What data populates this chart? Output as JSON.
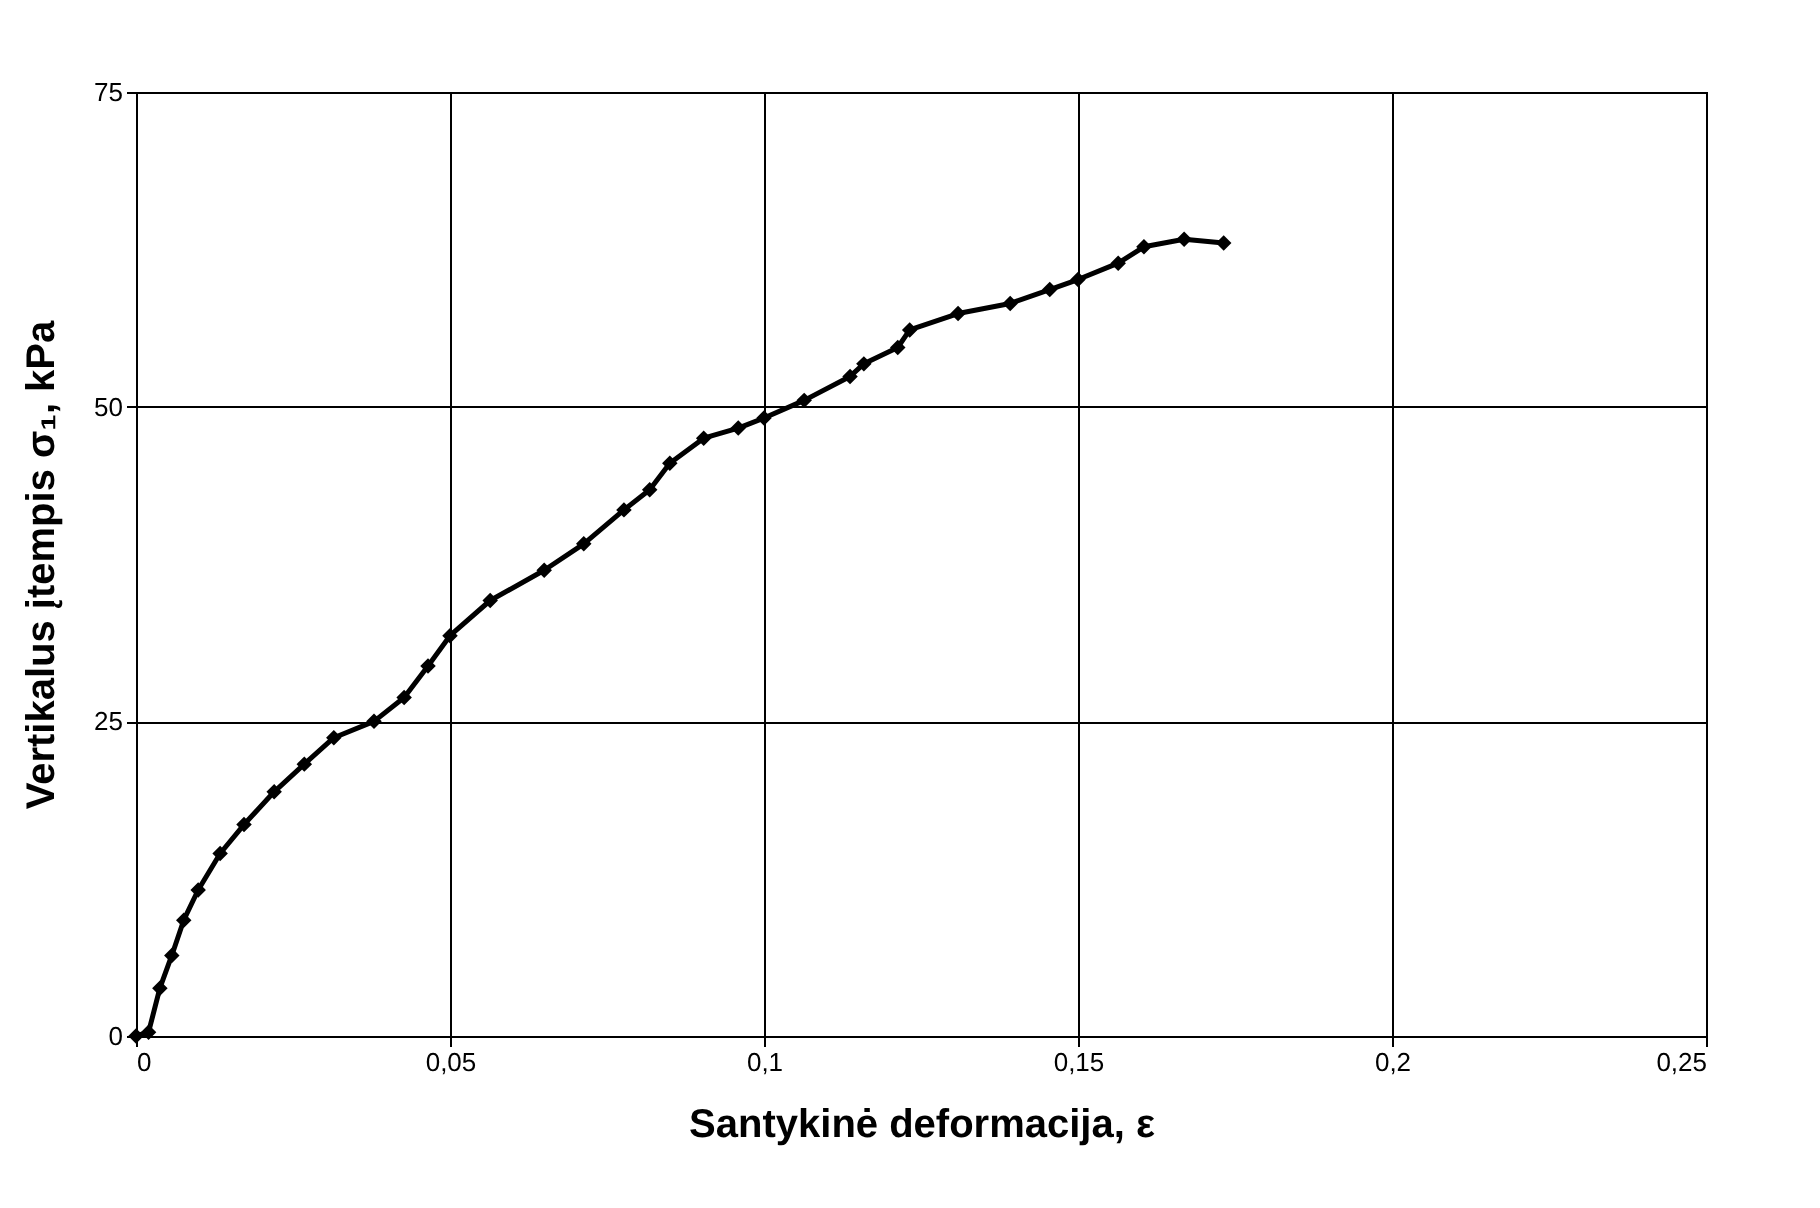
{
  "chart_data": {
    "type": "line",
    "xlabel": "Santykinė deformacija, ε",
    "ylabel": "Vertikalus įtempis σ₁, kPa",
    "x": [
      0,
      0.002,
      0.0038,
      0.0057,
      0.0076,
      0.0099,
      0.0134,
      0.0172,
      0.022,
      0.0268,
      0.0315,
      0.0379,
      0.0427,
      0.0465,
      0.05,
      0.0564,
      0.065,
      0.0713,
      0.0777,
      0.0818,
      0.085,
      0.0904,
      0.0959,
      0.1,
      0.1064,
      0.1137,
      0.1159,
      0.1213,
      0.1232,
      0.1309,
      0.1392,
      0.1455,
      0.15,
      0.1564,
      0.1605,
      0.1669,
      0.1732
    ],
    "series": [
      {
        "color": "#000000",
        "values": [
          0,
          0.3,
          3.8,
          6.4,
          9.2,
          11.6,
          14.5,
          16.8,
          19.4,
          21.6,
          23.7,
          25,
          26.9,
          29.4,
          31.8,
          34.6,
          37.0,
          39.1,
          41.8,
          43.4,
          45.5,
          47.5,
          48.3,
          49.1,
          50.5,
          52.4,
          53.4,
          54.7,
          56.1,
          57.4,
          58.2,
          59.3,
          60.1,
          61.4,
          62.7,
          63.3,
          63.0
        ]
      }
    ],
    "xlim": [
      0,
      0.25
    ],
    "xticks": [
      0,
      {
        "value": 0.05,
        "label": "0,05"
      },
      {
        "value": 0.1,
        "label": "0,1"
      },
      {
        "value": 0.15,
        "label": "0,15"
      },
      {
        "value": 0.2,
        "label": "0,2"
      },
      {
        "value": 0.25,
        "label": "0,25"
      }
    ],
    "ylim": [
      0,
      75
    ],
    "yticks": [
      0,
      25,
      50,
      75
    ],
    "grid": true,
    "marker": "diamond",
    "line_style": "solid"
  }
}
